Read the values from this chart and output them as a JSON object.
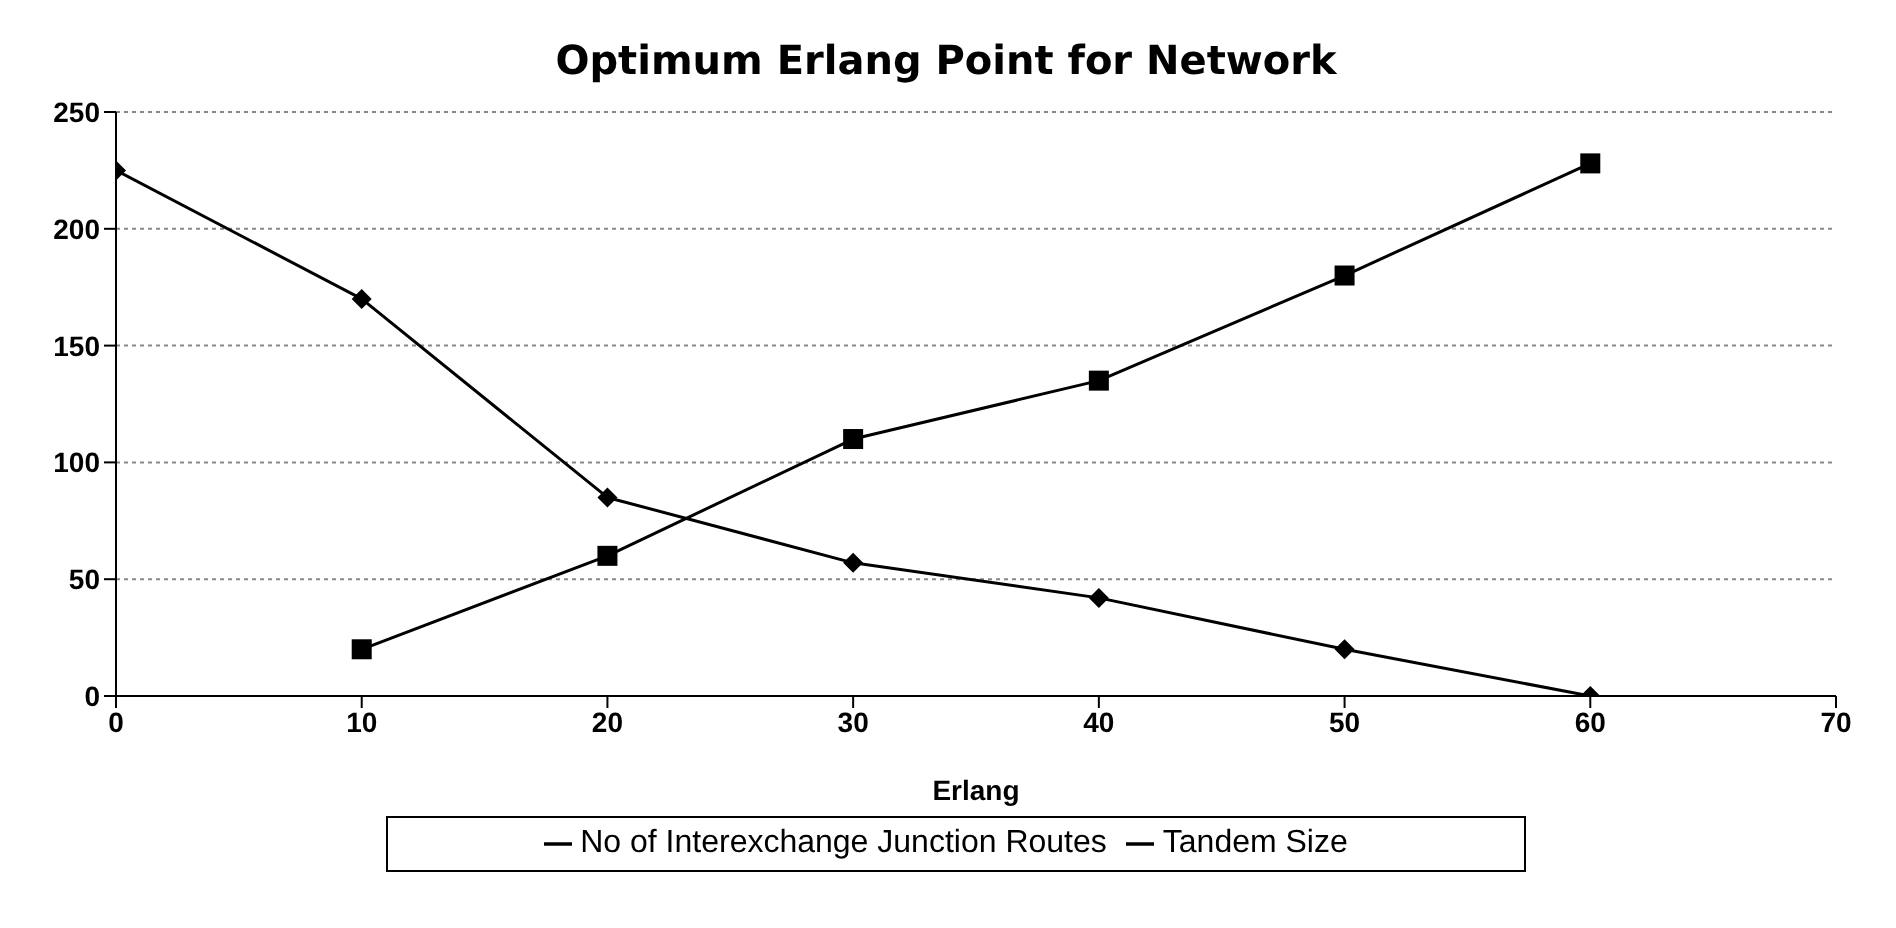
{
  "chart_data": {
    "type": "line",
    "title": "Optimum Erlang Point for Network",
    "xlabel": "Erlang",
    "series": [
      {
        "name": "No of Interexchange Junction Routes",
        "color": "#000000",
        "marker": "diamond",
        "x": [
          0,
          10,
          20,
          30,
          40,
          50,
          60
        ],
        "values": [
          225,
          170,
          85,
          57,
          42,
          20,
          0
        ]
      },
      {
        "name": "Tandem Size",
        "color": "#000000",
        "marker": "square",
        "x": [
          10,
          20,
          30,
          40,
          50,
          60
        ],
        "values": [
          20,
          60,
          110,
          135,
          180,
          228
        ]
      }
    ],
    "xlim": [
      0,
      70
    ],
    "xticks": [
      0,
      10,
      20,
      30,
      40,
      50,
      60,
      70
    ],
    "ylim": [
      0,
      250
    ],
    "yticks": [
      0,
      50,
      100,
      150,
      200,
      250
    ],
    "grid": "y",
    "legend": "bottom",
    "line_style": "solid"
  }
}
